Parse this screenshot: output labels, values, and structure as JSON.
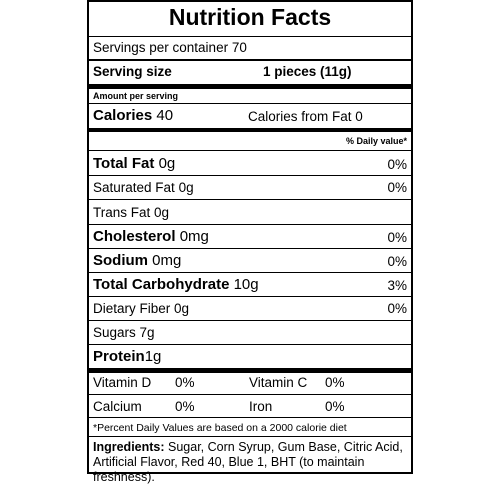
{
  "title": "Nutrition Facts",
  "servings_per_container": "Servings per container 70",
  "serving_size_label": "Serving size",
  "serving_size_value": "1 pieces (11g)",
  "amount_per_serving": "Amount per serving",
  "calories_label": "Calories",
  "calories_value": "40",
  "calories_from_fat": "Calories from Fat 0",
  "daily_value_header": "% Daily value*",
  "nutrients": [
    {
      "name": "Total Fat",
      "amount": "0g",
      "dv": "0%"
    },
    {
      "name": "Saturated Fat",
      "amount": "0g",
      "dv": "0%"
    },
    {
      "name": "Trans Fat",
      "amount": "0g",
      "dv": ""
    },
    {
      "name": "Cholesterol",
      "amount": "0mg",
      "dv": "0%"
    },
    {
      "name": "Sodium",
      "amount": "0mg",
      "dv": "0%"
    },
    {
      "name": "Total Carbohydrate",
      "amount": "10g",
      "dv": "3%"
    },
    {
      "name": "Dietary Fiber",
      "amount": "0g",
      "dv": "0%"
    },
    {
      "name": "Sugars",
      "amount": "7g",
      "dv": ""
    },
    {
      "name": "Protein",
      "amount": "1g",
      "dv": ""
    }
  ],
  "vitamins": [
    {
      "name": "Vitamin D",
      "dv": "0%"
    },
    {
      "name": "Vitamin C",
      "dv": "0%"
    },
    {
      "name": "Calcium",
      "dv": "0%"
    },
    {
      "name": "Iron",
      "dv": "0%"
    }
  ],
  "footnote": "*Percent Daily Values are based on a 2000 calorie diet",
  "ingredients_label": "Ingredients:",
  "ingredients_text": " Sugar, Corn Syrup, Gum Base, Citric Acid, Artificial Flavor, Red 40, Blue 1, BHT (to maintain freshness)."
}
